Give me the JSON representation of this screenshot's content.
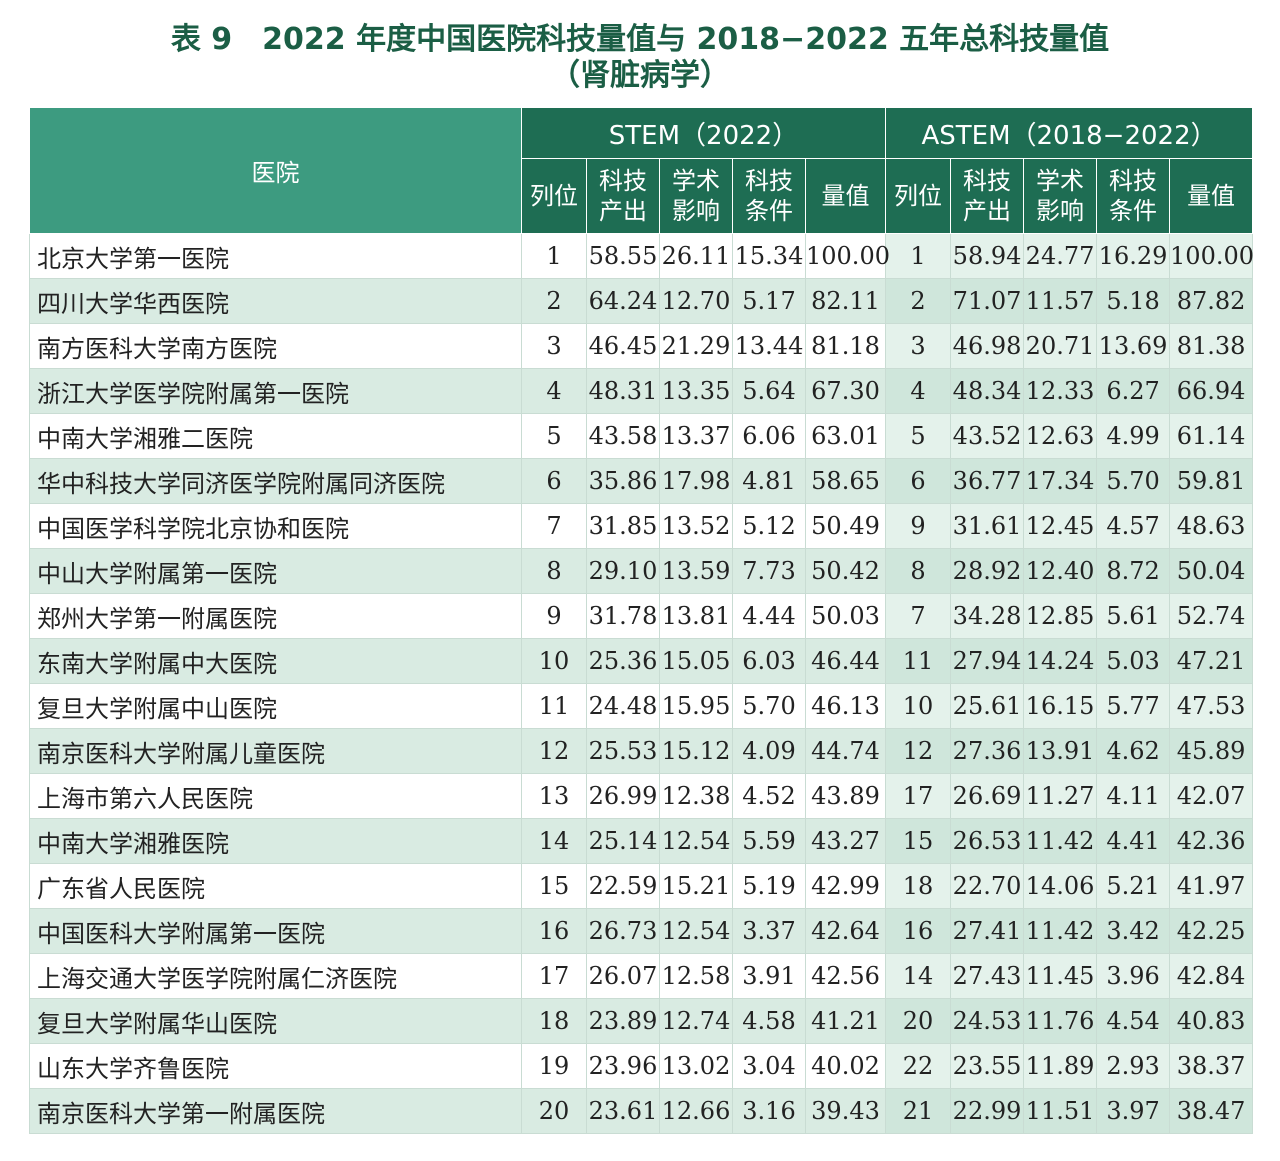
{
  "title": {
    "line1": "表 9　2022 年度中国医院科技量值与 2018−2022 五年总科技量值",
    "line2": "（肾脏病学）"
  },
  "header": {
    "hospital": "医院",
    "stem_group": "STEM（2022）",
    "astem_group": "ASTEM（2018−2022）",
    "rank": "列位",
    "output_1": "科技",
    "output_2": "产出",
    "impact_1": "学术",
    "impact_2": "影响",
    "cond_1": "科技",
    "cond_2": "条件",
    "value": "量值"
  },
  "rows": [
    {
      "hospital": "北京大学第一医院",
      "stem": [
        "1",
        "58.55",
        "26.11",
        "15.34",
        "100.00"
      ],
      "astem": [
        "1",
        "58.94",
        "24.77",
        "16.29",
        "100.00"
      ]
    },
    {
      "hospital": "四川大学华西医院",
      "stem": [
        "2",
        "64.24",
        "12.70",
        "5.17",
        "82.11"
      ],
      "astem": [
        "2",
        "71.07",
        "11.57",
        "5.18",
        "87.82"
      ]
    },
    {
      "hospital": "南方医科大学南方医院",
      "stem": [
        "3",
        "46.45",
        "21.29",
        "13.44",
        "81.18"
      ],
      "astem": [
        "3",
        "46.98",
        "20.71",
        "13.69",
        "81.38"
      ]
    },
    {
      "hospital": "浙江大学医学院附属第一医院",
      "stem": [
        "4",
        "48.31",
        "13.35",
        "5.64",
        "67.30"
      ],
      "astem": [
        "4",
        "48.34",
        "12.33",
        "6.27",
        "66.94"
      ]
    },
    {
      "hospital": "中南大学湘雅二医院",
      "stem": [
        "5",
        "43.58",
        "13.37",
        "6.06",
        "63.01"
      ],
      "astem": [
        "5",
        "43.52",
        "12.63",
        "4.99",
        "61.14"
      ]
    },
    {
      "hospital": "华中科技大学同济医学院附属同济医院",
      "stem": [
        "6",
        "35.86",
        "17.98",
        "4.81",
        "58.65"
      ],
      "astem": [
        "6",
        "36.77",
        "17.34",
        "5.70",
        "59.81"
      ]
    },
    {
      "hospital": "中国医学科学院北京协和医院",
      "stem": [
        "7",
        "31.85",
        "13.52",
        "5.12",
        "50.49"
      ],
      "astem": [
        "9",
        "31.61",
        "12.45",
        "4.57",
        "48.63"
      ]
    },
    {
      "hospital": "中山大学附属第一医院",
      "stem": [
        "8",
        "29.10",
        "13.59",
        "7.73",
        "50.42"
      ],
      "astem": [
        "8",
        "28.92",
        "12.40",
        "8.72",
        "50.04"
      ]
    },
    {
      "hospital": "郑州大学第一附属医院",
      "stem": [
        "9",
        "31.78",
        "13.81",
        "4.44",
        "50.03"
      ],
      "astem": [
        "7",
        "34.28",
        "12.85",
        "5.61",
        "52.74"
      ]
    },
    {
      "hospital": "东南大学附属中大医院",
      "stem": [
        "10",
        "25.36",
        "15.05",
        "6.03",
        "46.44"
      ],
      "astem": [
        "11",
        "27.94",
        "14.24",
        "5.03",
        "47.21"
      ]
    },
    {
      "hospital": "复旦大学附属中山医院",
      "stem": [
        "11",
        "24.48",
        "15.95",
        "5.70",
        "46.13"
      ],
      "astem": [
        "10",
        "25.61",
        "16.15",
        "5.77",
        "47.53"
      ]
    },
    {
      "hospital": "南京医科大学附属儿童医院",
      "stem": [
        "12",
        "25.53",
        "15.12",
        "4.09",
        "44.74"
      ],
      "astem": [
        "12",
        "27.36",
        "13.91",
        "4.62",
        "45.89"
      ]
    },
    {
      "hospital": "上海市第六人民医院",
      "stem": [
        "13",
        "26.99",
        "12.38",
        "4.52",
        "43.89"
      ],
      "astem": [
        "17",
        "26.69",
        "11.27",
        "4.11",
        "42.07"
      ]
    },
    {
      "hospital": "中南大学湘雅医院",
      "stem": [
        "14",
        "25.14",
        "12.54",
        "5.59",
        "43.27"
      ],
      "astem": [
        "15",
        "26.53",
        "11.42",
        "4.41",
        "42.36"
      ]
    },
    {
      "hospital": "广东省人民医院",
      "stem": [
        "15",
        "22.59",
        "15.21",
        "5.19",
        "42.99"
      ],
      "astem": [
        "18",
        "22.70",
        "14.06",
        "5.21",
        "41.97"
      ]
    },
    {
      "hospital": "中国医科大学附属第一医院",
      "stem": [
        "16",
        "26.73",
        "12.54",
        "3.37",
        "42.64"
      ],
      "astem": [
        "16",
        "27.41",
        "11.42",
        "3.42",
        "42.25"
      ]
    },
    {
      "hospital": "上海交通大学医学院附属仁济医院",
      "stem": [
        "17",
        "26.07",
        "12.58",
        "3.91",
        "42.56"
      ],
      "astem": [
        "14",
        "27.43",
        "11.45",
        "3.96",
        "42.84"
      ]
    },
    {
      "hospital": "复旦大学附属华山医院",
      "stem": [
        "18",
        "23.89",
        "12.74",
        "4.58",
        "41.21"
      ],
      "astem": [
        "20",
        "24.53",
        "11.76",
        "4.54",
        "40.83"
      ]
    },
    {
      "hospital": "山东大学齐鲁医院",
      "stem": [
        "19",
        "23.96",
        "13.02",
        "3.04",
        "40.02"
      ],
      "astem": [
        "22",
        "23.55",
        "11.89",
        "2.93",
        "38.37"
      ]
    },
    {
      "hospital": "南京医科大学第一附属医院",
      "stem": [
        "20",
        "23.61",
        "12.66",
        "3.16",
        "39.43"
      ],
      "astem": [
        "21",
        "22.99",
        "11.51",
        "3.97",
        "38.47"
      ]
    }
  ]
}
